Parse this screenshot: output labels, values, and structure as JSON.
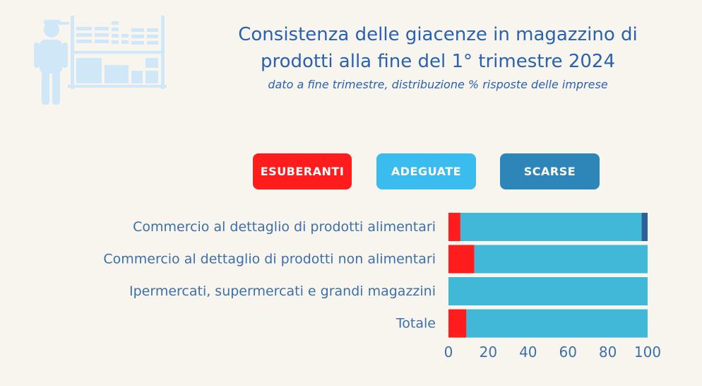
{
  "title_line1": "Consistenza delle giacenze in magazzino di",
  "title_line2": "prodotti alla fine del 1° trimestre 2024",
  "subtitle": "dato a fine trimestre, distribuzione % risposte delle imprese",
  "illustration_icon": "warehouse-worker-shelves-icon",
  "colors": {
    "esuberanti": "#ff1c1c",
    "adeguate": "#42b8d8",
    "scarse": "#2d5f98",
    "legend_adeguate": "#3bbcee",
    "legend_scarse": "#2e86b8",
    "text": "#3d6fa8"
  },
  "chart_data": {
    "type": "bar",
    "orientation": "horizontal",
    "stacked": true,
    "categories": [
      "Commercio al dettaglio di prodotti alimentari",
      "Commercio al dettaglio di prodotti non alimentari",
      "Ipermercati, supermercati e grandi magazzini",
      "Totale"
    ],
    "series": [
      {
        "name": "ESUBERANTI",
        "values": [
          6,
          13,
          0,
          9
        ]
      },
      {
        "name": "ADEGUATE",
        "values": [
          91,
          87,
          100,
          91
        ]
      },
      {
        "name": "SCARSE",
        "values": [
          3,
          0,
          0,
          0
        ]
      }
    ],
    "xlim": [
      0,
      100
    ],
    "xticks": [
      0,
      20,
      40,
      60,
      80,
      100
    ],
    "grid": false,
    "legend_position": "top"
  }
}
